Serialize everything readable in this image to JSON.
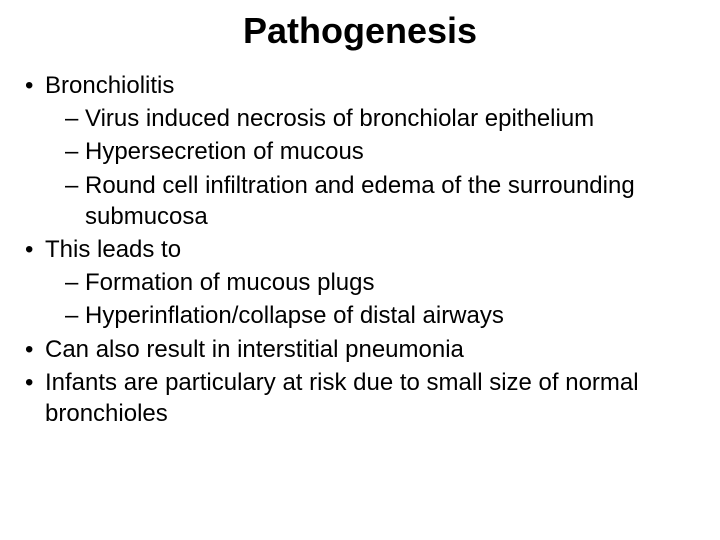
{
  "title": "Pathogenesis",
  "styling": {
    "background_color": "#ffffff",
    "text_color": "#000000",
    "title_fontsize": 36,
    "title_fontweight": "bold",
    "body_fontsize": 24,
    "font_family": "Arial"
  },
  "bullets": {
    "b1": "Bronchiolitis",
    "b1_1": "Virus induced necrosis of bronchiolar epithelium",
    "b1_2": "Hypersecretion of mucous",
    "b1_3": "Round cell infiltration and edema of the surrounding submucosa",
    "b2": "This leads to",
    "b2_1": "Formation of mucous plugs",
    "b2_2": "Hyperinflation/collapse of distal airways",
    "b3": "Can also result in interstitial pneumonia",
    "b4": "Infants are particulary at risk due to small size of normal bronchioles"
  }
}
